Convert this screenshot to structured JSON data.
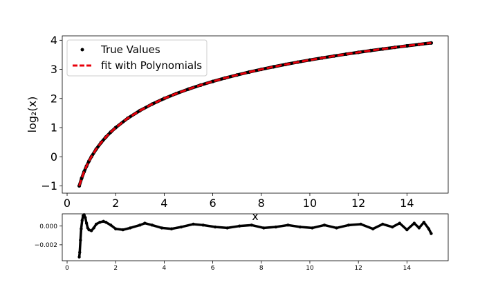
{
  "chart_data": [
    {
      "type": "line",
      "xlabel": "x",
      "ylabel": "log₂(x)",
      "xlim": [
        -0.2,
        15.7
      ],
      "ylim": [
        -1.25,
        4.15
      ],
      "x_ticks": [
        0,
        2,
        4,
        6,
        8,
        10,
        12,
        14
      ],
      "y_ticks": [
        -1,
        0,
        1,
        2,
        3,
        4
      ],
      "x_tick_labels": [
        "0",
        "2",
        "4",
        "6",
        "8",
        "10",
        "12",
        "14"
      ],
      "y_tick_labels": [
        "−1",
        "0",
        "1",
        "2",
        "3",
        "4"
      ],
      "legend": {
        "placement": "upper-left",
        "entries": [
          {
            "label": "True Values",
            "marker": "dot",
            "color": "#000000"
          },
          {
            "label": "fit with Polynomials",
            "marker": "dashed-line",
            "color": "#e8000b"
          }
        ]
      },
      "series": [
        {
          "name": "True Values",
          "style": "scatter",
          "color": "#000000",
          "x": [
            0.5,
            0.6,
            0.7,
            0.8,
            0.9,
            1.0,
            1.2,
            1.4,
            1.6,
            1.8,
            2.0,
            2.5,
            3.0,
            3.5,
            4.0,
            4.5,
            5.0,
            5.5,
            6.0,
            6.5,
            7.0,
            7.5,
            8.0,
            8.5,
            9.0,
            9.5,
            10.0,
            10.5,
            11.0,
            11.5,
            12.0,
            12.5,
            13.0,
            13.5,
            14.0,
            14.5,
            15.0
          ],
          "y": [
            -1.0,
            -0.737,
            -0.515,
            -0.322,
            -0.152,
            0.0,
            0.263,
            0.485,
            0.678,
            0.848,
            1.0,
            1.322,
            1.585,
            1.807,
            2.0,
            2.17,
            2.322,
            2.459,
            2.585,
            2.7,
            2.807,
            2.907,
            3.0,
            3.087,
            3.17,
            3.248,
            3.322,
            3.392,
            3.459,
            3.524,
            3.585,
            3.644,
            3.7,
            3.755,
            3.807,
            3.858,
            3.907
          ]
        },
        {
          "name": "fit with Polynomials",
          "style": "dashed-line",
          "color": "#e8000b",
          "x": [
            0.5,
            0.6,
            0.7,
            0.8,
            0.9,
            1.0,
            1.2,
            1.4,
            1.6,
            1.8,
            2.0,
            2.5,
            3.0,
            3.5,
            4.0,
            4.5,
            5.0,
            5.5,
            6.0,
            6.5,
            7.0,
            7.5,
            8.0,
            8.5,
            9.0,
            9.5,
            10.0,
            10.5,
            11.0,
            11.5,
            12.0,
            12.5,
            13.0,
            13.5,
            14.0,
            14.5,
            15.0
          ],
          "y": [
            -1.0,
            -0.737,
            -0.515,
            -0.322,
            -0.152,
            0.0,
            0.263,
            0.485,
            0.678,
            0.848,
            1.0,
            1.322,
            1.585,
            1.807,
            2.0,
            2.17,
            2.322,
            2.459,
            2.585,
            2.7,
            2.807,
            2.907,
            3.0,
            3.087,
            3.17,
            3.248,
            3.322,
            3.392,
            3.459,
            3.524,
            3.585,
            3.644,
            3.7,
            3.755,
            3.807,
            3.858,
            3.907
          ]
        }
      ]
    },
    {
      "type": "scatter",
      "xlabel": "",
      "ylabel": "",
      "xlim": [
        -0.2,
        15.7
      ],
      "ylim": [
        -0.0037,
        0.0013
      ],
      "x_ticks": [
        0,
        2,
        4,
        6,
        8,
        10,
        12,
        14
      ],
      "y_ticks": [
        0.0,
        -0.002
      ],
      "x_tick_labels": [
        "0",
        "2",
        "4",
        "6",
        "8",
        "10",
        "12",
        "14"
      ],
      "y_tick_labels": [
        "0.000",
        "−0.002"
      ],
      "series": [
        {
          "color": "#000000",
          "x": [
            0.5,
            0.52,
            0.55,
            0.58,
            0.62,
            0.66,
            0.7,
            0.75,
            0.8,
            0.85,
            0.9,
            1.0,
            1.1,
            1.2,
            1.35,
            1.5,
            1.6,
            1.8,
            2.0,
            2.3,
            2.6,
            3.0,
            3.2,
            3.5,
            3.9,
            4.3,
            4.7,
            5.2,
            5.6,
            6.1,
            6.6,
            7.1,
            7.6,
            8.1,
            8.6,
            9.1,
            9.6,
            10.1,
            10.6,
            11.1,
            11.6,
            12.1,
            12.6,
            13.0,
            13.4,
            13.7,
            14.0,
            14.3,
            14.5,
            14.7,
            14.9,
            15.0
          ],
          "y": [
            -0.0033,
            -0.0028,
            -0.0015,
            -0.0003,
            0.0006,
            0.0011,
            0.0012,
            0.0009,
            0.0003,
            -0.0002,
            -0.0004,
            -0.0005,
            -0.0002,
            0.0002,
            0.0004,
            0.0005,
            0.0004,
            0.0001,
            -0.0003,
            -0.0004,
            -0.0002,
            0.0001,
            0.0003,
            0.0001,
            -0.0002,
            -0.0003,
            -0.0001,
            0.0002,
            0.0001,
            -0.0001,
            -0.0002,
            0.0,
            0.0001,
            -0.0002,
            -0.0001,
            0.0001,
            -0.0001,
            -0.0002,
            0.0001,
            -0.0002,
            0.0001,
            0.0002,
            -0.0003,
            0.0002,
            -0.0001,
            0.0003,
            -0.0004,
            0.0003,
            -0.0002,
            0.0004,
            -0.0003,
            -0.0008
          ]
        }
      ]
    }
  ]
}
